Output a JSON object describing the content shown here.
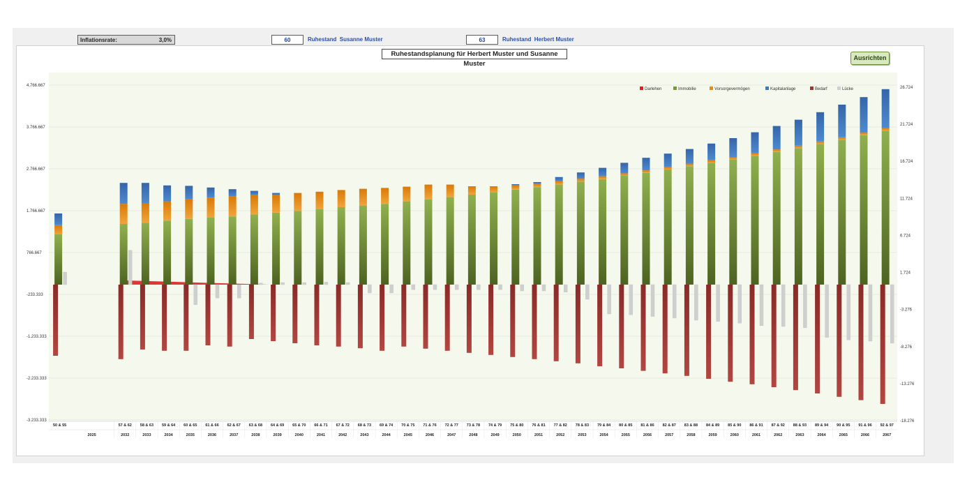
{
  "header": {
    "inflation_label": "Inflationsrate:",
    "inflation_value": "3,0%",
    "age_susanne": "60",
    "label_susanne": "Ruhestand  Susanne Muster",
    "age_herbert": "63",
    "label_herbert": "Ruhestand  Herbert Muster",
    "button_label": "Ausrichten"
  },
  "colors": {
    "darlehen": "#e02020",
    "immobilie": "#77973c",
    "vorsorge": "#e98a12",
    "kapital": "#3f79bd",
    "bedarf": "#9e3431",
    "luecke": "#cfcfcf",
    "plot_bg": "#f5f8ec"
  },
  "chart_data": {
    "type": "bar",
    "title": "Ruhestandsplanung für Herbert Muster und Susanne Muster",
    "legend_position": "top-right",
    "grid": true,
    "y_left": {
      "ticks": [
        "4.766.667",
        "3.766.667",
        "2.766.667",
        "1.766.667",
        "766.667",
        "-233.333",
        "-1.233.333",
        "-2.233.333",
        "-3.233.333"
      ],
      "range": [
        -3233333,
        4766667
      ]
    },
    "y_right": {
      "ticks": [
        "26.724",
        "21.724",
        "16.724",
        "11.724",
        "6.724",
        "1.724",
        "-3.276",
        "-8.276",
        "-13.276",
        "-18.276"
      ]
    },
    "ages": [
      "50 & 55",
      "",
      "",
      "57 & 62",
      "58 & 63",
      "59 & 64",
      "60 & 65",
      "61 & 66",
      "62 & 67",
      "63 & 68",
      "64 & 69",
      "65 & 70",
      "66 & 71",
      "67 & 72",
      "68 & 73",
      "69 & 74",
      "70 & 75",
      "71 & 76",
      "72 & 77",
      "73 & 78",
      "74 & 79",
      "75 & 80",
      "76 & 81",
      "77 & 82",
      "78 & 83",
      "79 & 84",
      "80 & 85",
      "81 & 86",
      "82 & 87",
      "83 & 88",
      "84 & 89",
      "85 & 90",
      "86 & 91",
      "87 & 92",
      "88 & 93",
      "89 & 94",
      "90 & 95",
      "91 & 96",
      "92 & 97"
    ],
    "years": [
      "2025",
      "",
      "",
      "2032",
      "2033",
      "2034",
      "2035",
      "2036",
      "2037",
      "2038",
      "2039",
      "2040",
      "2041",
      "2042",
      "2043",
      "2044",
      "2045",
      "2046",
      "2047",
      "2048",
      "2049",
      "2050",
      "2051",
      "2052",
      "2053",
      "2054",
      "2055",
      "2056",
      "2057",
      "2058",
      "2059",
      "2060",
      "2061",
      "2062",
      "2063",
      "2064",
      "2065",
      "2066",
      "2067"
    ],
    "series": [
      {
        "name": "Darlehen",
        "values": [
          0,
          0,
          0,
          100000,
          85000,
          70000,
          55000,
          40000,
          25000,
          10000,
          0,
          0,
          0,
          0,
          0,
          0,
          0,
          0,
          0,
          0,
          0,
          0,
          0,
          0,
          0,
          0,
          0,
          0,
          0,
          0,
          0,
          0,
          0,
          0,
          0,
          0,
          0,
          0,
          0
        ]
      },
      {
        "name": "Immobilie",
        "values": [
          1200000,
          0,
          0,
          1450000,
          1480000,
          1530000,
          1570000,
          1600000,
          1630000,
          1680000,
          1720000,
          1760000,
          1800000,
          1850000,
          1890000,
          1930000,
          1990000,
          2040000,
          2090000,
          2150000,
          2200000,
          2270000,
          2330000,
          2390000,
          2460000,
          2520000,
          2600000,
          2670000,
          2750000,
          2830000,
          2910000,
          2990000,
          3080000,
          3170000,
          3260000,
          3360000,
          3460000,
          3570000,
          3680000
        ]
      },
      {
        "name": "Vorsorgevermögen",
        "values": [
          220000,
          0,
          0,
          480000,
          470000,
          460000,
          470000,
          480000,
          480000,
          460000,
          420000,
          430000,
          420000,
          410000,
          400000,
          380000,
          350000,
          350000,
          300000,
          200000,
          150000,
          100000,
          80000,
          80000,
          70000,
          70000,
          60000,
          60000,
          60000,
          60000,
          60000,
          60000,
          60000,
          60000,
          60000,
          60000,
          60000,
          60000,
          60000
        ]
      },
      {
        "name": "Kapitalanlage",
        "values": [
          280000,
          0,
          0,
          500000,
          480000,
          380000,
          320000,
          240000,
          170000,
          100000,
          50000,
          0,
          0,
          0,
          0,
          0,
          0,
          0,
          0,
          0,
          0,
          30000,
          40000,
          100000,
          150000,
          200000,
          250000,
          300000,
          320000,
          350000,
          400000,
          450000,
          500000,
          560000,
          620000,
          700000,
          780000,
          850000,
          930000
        ]
      },
      {
        "name": "Bedarf",
        "values": [
          -1700000,
          0,
          0,
          -1780000,
          -1550000,
          -1580000,
          -1580000,
          -1450000,
          -1480000,
          -1300000,
          -1350000,
          -1400000,
          -1450000,
          -1480000,
          -1520000,
          -1580000,
          -1480000,
          -1530000,
          -1580000,
          -1630000,
          -1680000,
          -1730000,
          -1780000,
          -1830000,
          -1880000,
          -1950000,
          -2000000,
          -2060000,
          -2120000,
          -2180000,
          -2250000,
          -2320000,
          -2380000,
          -2450000,
          -2520000,
          -2600000,
          -2680000,
          -2760000,
          -2850000
        ]
      },
      {
        "name": "Lücke",
        "values": [
          300000,
          0,
          0,
          820000,
          0,
          0,
          -480000,
          -320000,
          -320000,
          40000,
          50000,
          50000,
          60000,
          50000,
          -200000,
          -200000,
          -120000,
          -120000,
          -120000,
          -120000,
          -120000,
          -150000,
          -150000,
          -180000,
          -350000,
          -700000,
          -720000,
          -760000,
          -800000,
          -850000,
          -880000,
          -920000,
          -980000,
          -1000000,
          -1030000,
          -1260000,
          -1320000,
          -1350000,
          -1400000
        ]
      }
    ]
  }
}
